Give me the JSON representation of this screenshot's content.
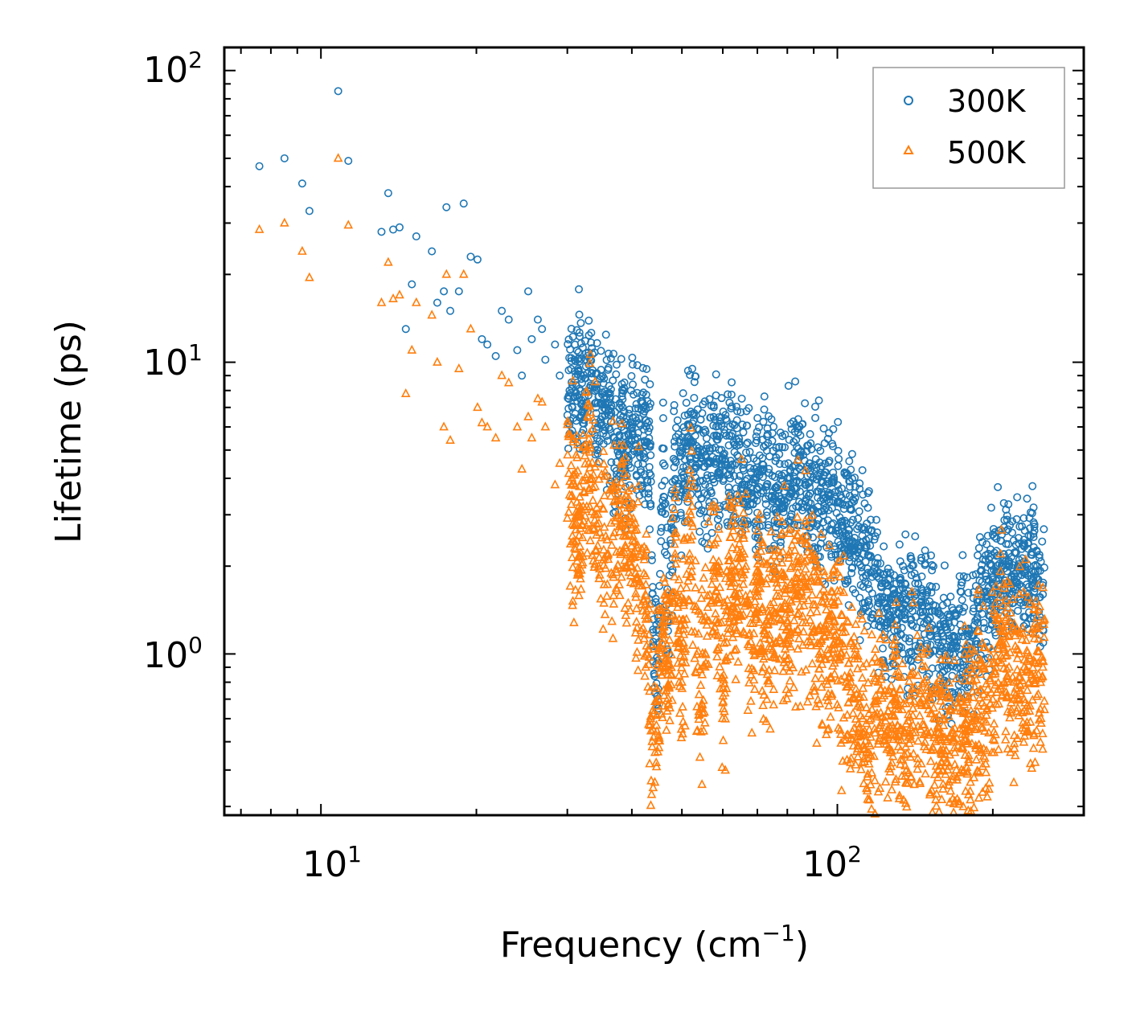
{
  "chart_data": {
    "type": "scatter",
    "title": "",
    "xlabel": "Frequency (cm",
    "xlabel_sup": "−1",
    "xlabel_suffix": ")",
    "ylabel": "Lifetime (ps)",
    "xscale": "log",
    "yscale": "log",
    "xlim": [
      6.5,
      300
    ],
    "ylim": [
      0.28,
      120
    ],
    "x_ticks": [
      {
        "base": "10",
        "exp": "1",
        "value": 10
      },
      {
        "base": "10",
        "exp": "2",
        "value": 100
      }
    ],
    "y_ticks": [
      {
        "base": "10",
        "exp": "0",
        "value": 1
      },
      {
        "base": "10",
        "exp": "1",
        "value": 10
      },
      {
        "base": "10",
        "exp": "2",
        "value": 100
      }
    ],
    "legend_position": "top-right",
    "series": [
      {
        "name": "300K",
        "marker": "circle",
        "color": "#1f77b4",
        "points": [
          [
            7.6,
            47
          ],
          [
            8.5,
            50
          ],
          [
            9.2,
            41
          ],
          [
            9.5,
            33
          ],
          [
            10.8,
            85
          ],
          [
            11.3,
            49
          ],
          [
            13.1,
            28
          ],
          [
            13.5,
            38
          ],
          [
            13.8,
            28.5
          ],
          [
            14.2,
            29
          ],
          [
            14.6,
            13
          ],
          [
            15.0,
            18.5
          ],
          [
            15.3,
            27
          ],
          [
            16.4,
            24
          ],
          [
            16.8,
            16
          ],
          [
            17.3,
            17.5
          ],
          [
            17.5,
            34
          ],
          [
            17.8,
            15
          ],
          [
            18.5,
            17.5
          ],
          [
            18.9,
            35
          ],
          [
            19.5,
            23
          ],
          [
            20.1,
            22.5
          ],
          [
            20.5,
            12
          ],
          [
            21.0,
            11.5
          ],
          [
            21.8,
            10.5
          ],
          [
            22.4,
            15
          ],
          [
            23.1,
            14
          ],
          [
            24.0,
            11
          ],
          [
            24.5,
            9
          ],
          [
            25.2,
            17.5
          ],
          [
            25.6,
            12
          ],
          [
            26.3,
            14
          ],
          [
            26.8,
            13
          ],
          [
            27.2,
            10.2
          ],
          [
            28.4,
            11.5
          ],
          [
            29.0,
            9
          ],
          [
            30.3,
            8
          ],
          [
            31.5,
            9.5
          ],
          [
            32.2,
            7
          ],
          [
            33.0,
            9.8
          ],
          [
            34.1,
            7
          ],
          [
            35.0,
            6.5
          ],
          [
            36.0,
            6.8
          ],
          [
            37.0,
            5.5
          ],
          [
            38.2,
            6
          ],
          [
            39.1,
            5
          ],
          [
            40.0,
            6
          ],
          [
            41.0,
            5.5
          ],
          [
            42.5,
            5.2
          ],
          [
            43.5,
            4.8
          ],
          [
            44.0,
            1.1
          ],
          [
            45.0,
            0.95
          ],
          [
            46.0,
            4.5
          ],
          [
            47.0,
            1.2
          ],
          [
            48.5,
            4.6
          ],
          [
            50.0,
            4.2
          ],
          [
            52.0,
            5.3
          ],
          [
            54.0,
            4.5
          ],
          [
            56.0,
            4.1
          ],
          [
            58.0,
            5.1
          ],
          [
            60.0,
            4.7
          ],
          [
            62.0,
            4.0
          ],
          [
            64.0,
            4.8
          ],
          [
            66.0,
            3.8
          ],
          [
            68.0,
            4.2
          ],
          [
            70.0,
            3.5
          ],
          [
            72.0,
            4.3
          ],
          [
            75.0,
            3.6
          ],
          [
            78.0,
            3.2
          ],
          [
            80.0,
            4.0
          ],
          [
            84.0,
            4.6
          ],
          [
            88.0,
            3.3
          ],
          [
            92.0,
            3.6
          ],
          [
            96.0,
            3.5
          ],
          [
            100.0,
            3.3
          ],
          [
            104.0,
            2.8
          ],
          [
            108.0,
            2.5
          ],
          [
            112.0,
            2.2
          ],
          [
            116.0,
            1.9
          ],
          [
            120.0,
            1.5
          ],
          [
            125.0,
            1.45
          ],
          [
            130.0,
            1.3
          ],
          [
            135.0,
            1.4
          ],
          [
            140.0,
            1.25
          ],
          [
            145.0,
            1.5
          ],
          [
            150.0,
            1.3
          ],
          [
            155.0,
            1.2
          ],
          [
            160.0,
            1.1
          ],
          [
            165.0,
            1.0
          ],
          [
            170.0,
            1.05
          ],
          [
            175.0,
            1.15
          ],
          [
            180.0,
            1.2
          ],
          [
            185.0,
            1.3
          ],
          [
            190.0,
            1.6
          ],
          [
            195.0,
            1.5
          ],
          [
            200.0,
            1.8
          ],
          [
            205.0,
            1.9
          ],
          [
            210.0,
            2.2
          ],
          [
            215.0,
            2.0
          ],
          [
            220.0,
            1.8
          ],
          [
            225.0,
            2.1
          ],
          [
            230.0,
            1.9
          ],
          [
            235.0,
            1.7
          ],
          [
            240.0,
            2.0
          ],
          [
            245.0,
            1.8
          ],
          [
            250.0,
            1.6
          ]
        ]
      },
      {
        "name": "500K",
        "marker": "triangle",
        "color": "#ff7f0e",
        "points": [
          [
            7.6,
            28.5
          ],
          [
            8.5,
            30
          ],
          [
            9.2,
            24
          ],
          [
            9.5,
            19.5
          ],
          [
            10.8,
            50
          ],
          [
            11.3,
            29.5
          ],
          [
            13.1,
            16
          ],
          [
            13.5,
            22
          ],
          [
            13.8,
            16.5
          ],
          [
            14.2,
            17
          ],
          [
            14.6,
            7.8
          ],
          [
            15.0,
            11
          ],
          [
            15.3,
            16
          ],
          [
            16.4,
            14.5
          ],
          [
            16.8,
            10
          ],
          [
            17.3,
            6
          ],
          [
            17.5,
            20
          ],
          [
            17.8,
            5.4
          ],
          [
            18.5,
            9.5
          ],
          [
            18.9,
            20
          ],
          [
            19.5,
            13
          ],
          [
            20.1,
            7
          ],
          [
            20.5,
            6.2
          ],
          [
            21.0,
            6
          ],
          [
            21.8,
            5.5
          ],
          [
            22.4,
            9
          ],
          [
            23.1,
            8.5
          ],
          [
            24.0,
            6
          ],
          [
            24.5,
            4.3
          ],
          [
            25.2,
            6.5
          ],
          [
            25.6,
            5.5
          ],
          [
            26.3,
            7.5
          ],
          [
            26.8,
            7.3
          ],
          [
            27.2,
            6
          ],
          [
            28.4,
            3.8
          ],
          [
            29.0,
            4.5
          ],
          [
            30.3,
            3.5
          ],
          [
            31.5,
            3.0
          ],
          [
            32.2,
            3.2
          ],
          [
            33.0,
            4.5
          ],
          [
            34.1,
            3.0
          ],
          [
            35.0,
            2.5
          ],
          [
            36.0,
            2.2
          ],
          [
            37.0,
            2.6
          ],
          [
            38.2,
            3.0
          ],
          [
            39.1,
            2.0
          ],
          [
            40.0,
            2.7
          ],
          [
            41.0,
            1.8
          ],
          [
            42.5,
            1.6
          ],
          [
            43.5,
            0.6
          ],
          [
            44.0,
            0.55
          ],
          [
            45.0,
            0.7
          ],
          [
            46.0,
            1.2
          ],
          [
            47.0,
            0.85
          ],
          [
            48.5,
            2.2
          ],
          [
            50.0,
            0.8
          ],
          [
            52.0,
            3.0
          ],
          [
            54.0,
            0.62
          ],
          [
            56.0,
            1.3
          ],
          [
            58.0,
            2.4
          ],
          [
            60.0,
            0.68
          ],
          [
            62.0,
            1.9
          ],
          [
            64.0,
            1.5
          ],
          [
            66.0,
            2.2
          ],
          [
            68.0,
            1.1
          ],
          [
            70.0,
            1.8
          ],
          [
            72.0,
            1.2
          ],
          [
            75.0,
            1.4
          ],
          [
            78.0,
            1.9
          ],
          [
            80.0,
            1.3
          ],
          [
            84.0,
            1.6
          ],
          [
            88.0,
            1.7
          ],
          [
            92.0,
            1.2
          ],
          [
            96.0,
            1.0
          ],
          [
            100.0,
            1.1
          ],
          [
            104.0,
            0.8
          ],
          [
            108.0,
            0.7
          ],
          [
            112.0,
            0.6
          ],
          [
            116.0,
            0.45
          ],
          [
            120.0,
            0.8
          ],
          [
            125.0,
            0.55
          ],
          [
            130.0,
            0.7
          ],
          [
            135.0,
            0.45
          ],
          [
            140.0,
            0.65
          ],
          [
            145.0,
            0.55
          ],
          [
            150.0,
            0.75
          ],
          [
            155.0,
            0.5
          ],
          [
            160.0,
            0.6
          ],
          [
            165.0,
            0.45
          ],
          [
            170.0,
            0.4
          ],
          [
            175.0,
            0.5
          ],
          [
            180.0,
            0.55
          ],
          [
            185.0,
            0.6
          ],
          [
            190.0,
            0.75
          ],
          [
            195.0,
            0.65
          ],
          [
            200.0,
            0.85
          ],
          [
            205.0,
            0.95
          ],
          [
            210.0,
            1.05
          ],
          [
            215.0,
            0.9
          ],
          [
            220.0,
            0.8
          ],
          [
            225.0,
            1.0
          ],
          [
            230.0,
            0.9
          ],
          [
            235.0,
            0.8
          ],
          [
            240.0,
            0.95
          ],
          [
            245.0,
            0.85
          ],
          [
            250.0,
            0.9
          ]
        ]
      }
    ]
  }
}
